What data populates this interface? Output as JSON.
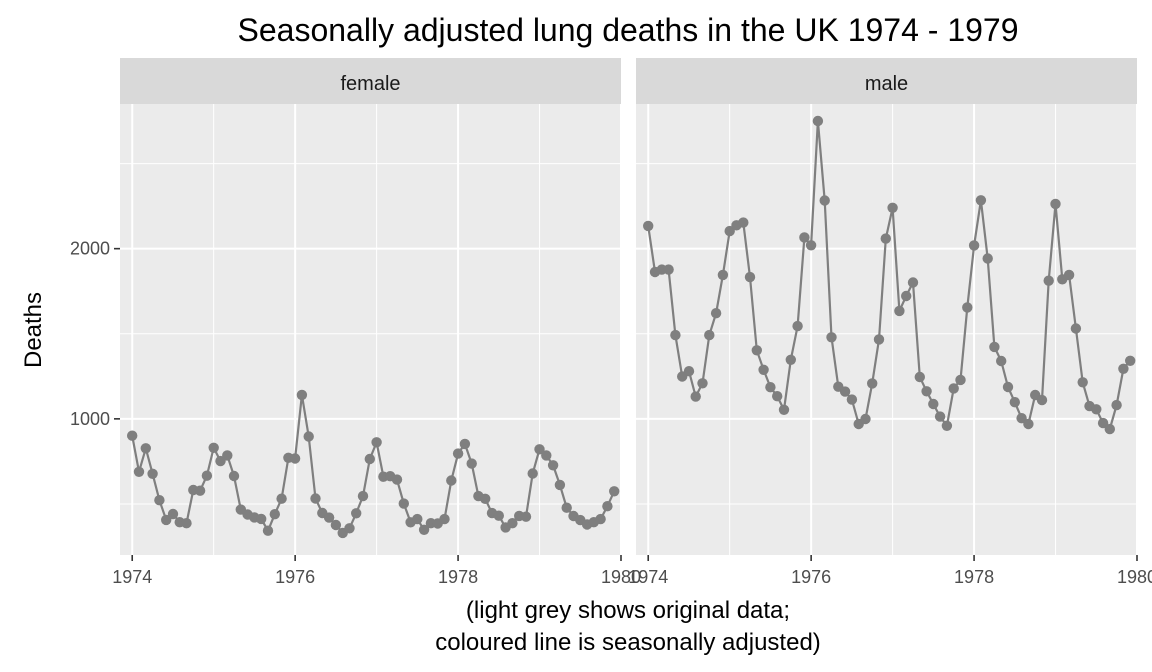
{
  "chart_data": {
    "type": "line",
    "title": "Seasonally adjusted lung deaths in the UK 1974 - 1979",
    "xlabel_line1": "(light grey shows original data;",
    "xlabel_line2": "coloured line is seasonally adjusted)",
    "ylabel": "Deaths",
    "xlim": [
      1973.85,
      1980.0
    ],
    "ylim": [
      200,
      2850
    ],
    "x_ticks": [
      1974,
      1976,
      1978,
      1980
    ],
    "x_tick_labels": [
      "1974",
      "1976",
      "1978",
      "1980"
    ],
    "y_ticks": [
      1000,
      2000
    ],
    "y_tick_labels": [
      "1000",
      "2000"
    ],
    "x_start": 1974,
    "x_step": 0.0833333,
    "panels": [
      {
        "strip": "female",
        "values": [
          901,
          689,
          827,
          677,
          522,
          406,
          441,
          393,
          387,
          582,
          578,
          666,
          830,
          752,
          785,
          664,
          467,
          438,
          421,
          412,
          343,
          440,
          531,
          771,
          767,
          1141,
          896,
          532,
          447,
          420,
          376,
          330,
          357,
          445,
          546,
          764,
          862,
          660,
          663,
          643,
          502,
          392,
          411,
          348,
          387,
          385,
          411,
          638,
          796,
          853,
          737,
          546,
          530,
          446,
          431,
          362,
          387,
          430,
          425,
          679,
          821,
          785,
          727,
          612,
          478,
          429,
          405,
          379,
          393,
          411,
          487,
          574
        ]
      },
      {
        "strip": "male",
        "values": [
          2134,
          1863,
          1877,
          1877,
          1492,
          1249,
          1280,
          1131,
          1209,
          1492,
          1621,
          1846,
          2103,
          2137,
          2153,
          1833,
          1403,
          1288,
          1186,
          1133,
          1053,
          1347,
          1545,
          2066,
          2020,
          2750,
          2283,
          1479,
          1189,
          1160,
          1113,
          970,
          999,
          1208,
          1467,
          2059,
          2240,
          1634,
          1722,
          1801,
          1246,
          1162,
          1087,
          1013,
          959,
          1179,
          1229,
          1655,
          2019,
          2284,
          1942,
          1423,
          1340,
          1187,
          1098,
          1004,
          970,
          1140,
          1110,
          1812,
          2263,
          1820,
          1846,
          1531,
          1215,
          1075,
          1056,
          975,
          940,
          1081,
          1294,
          1341
        ]
      }
    ]
  }
}
